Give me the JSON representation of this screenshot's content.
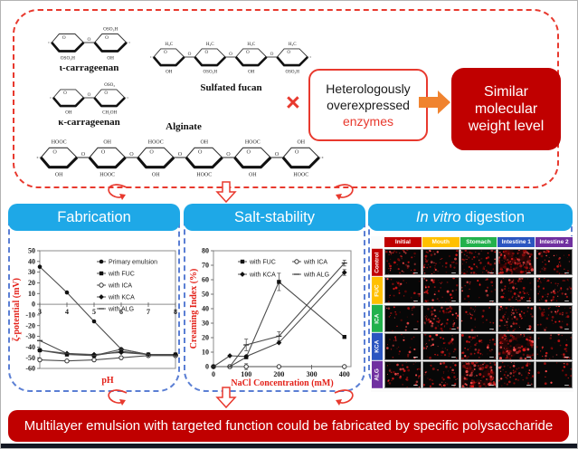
{
  "top_box": {
    "border_color": "#e8392e",
    "cross": "×",
    "molecules": [
      {
        "name": "ι-carrageenan",
        "rings": 2,
        "top_labels": [
          "",
          "OSO₃H"
        ],
        "bottom_labels": [
          "OSO₃H",
          "OH"
        ]
      },
      {
        "name": "Sulfated fucan",
        "rings": 4,
        "top_labels": [
          "H₃C"
        ],
        "bottom_labels": [
          "OH",
          "OSO₃H"
        ]
      },
      {
        "name": "κ-carrageenan",
        "rings": 2,
        "top_labels": [
          "",
          "OSO₃"
        ],
        "bottom_labels": [
          "OH",
          "CH₂OH"
        ]
      },
      {
        "name": "Alginate",
        "rings": 6,
        "top_labels": [
          "HOOC",
          "OH"
        ],
        "bottom_labels": [
          "OH",
          "HOOC"
        ]
      }
    ],
    "enzyme_box": {
      "line1": "Heterologously",
      "line2": "overexpressed",
      "line3": "enzymes",
      "accent": "#e8392e"
    },
    "result_box": {
      "text": "Similar molecular weight level",
      "bg": "#c00000"
    }
  },
  "panels": [
    {
      "title": "Fabrication",
      "header_bg": "#1ea8e7"
    },
    {
      "title": "Salt-stability",
      "header_bg": "#1ea8e7"
    },
    {
      "title_italic": "In vitro",
      "title_rest": " digestion",
      "header_bg": "#1ea8e7"
    }
  ],
  "chart_data": [
    {
      "type": "line",
      "xlabel": "pH",
      "ylabel": "ζ-potential (mV)",
      "x": [
        3,
        4,
        5,
        6,
        7,
        8
      ],
      "xlim": [
        3,
        8
      ],
      "ylim": [
        -60,
        50
      ],
      "ytick_step": 10,
      "grid": false,
      "legend_position": "top-right",
      "series": [
        {
          "name": "Primary emulsion",
          "marker": "circle",
          "values": [
            35,
            11,
            -16,
            -42,
            -47,
            -47
          ]
        },
        {
          "name": "with FUC",
          "marker": "square",
          "values": [
            -43,
            -47,
            -48,
            -44,
            -47,
            -47
          ]
        },
        {
          "name": "with ICA",
          "marker": "circle-open",
          "values": [
            -52,
            -53,
            -52,
            -50,
            -48,
            -48
          ]
        },
        {
          "name": "with KCA",
          "marker": "diamond",
          "values": [
            -43,
            -46,
            -47,
            -45,
            -47,
            -47
          ]
        },
        {
          "name": "with ALG",
          "marker": "dash",
          "values": [
            -34,
            -46,
            -48,
            -42,
            -47,
            -48
          ]
        }
      ]
    },
    {
      "type": "line",
      "xlabel": "NaCl Concentration (mM)",
      "ylabel": "Creaming Index (%)",
      "x": [
        0,
        50,
        100,
        200,
        400
      ],
      "xlim": [
        0,
        420
      ],
      "xticks": [
        0,
        100,
        200,
        300,
        400
      ],
      "ylim": [
        0,
        80
      ],
      "ytick_step": 10,
      "grid": false,
      "legend_position": "top-left",
      "series": [
        {
          "name": "with FUC",
          "marker": "square",
          "values": [
            0,
            0,
            6.5,
            58.5,
            20.5
          ],
          "err": [
            0,
            0,
            0,
            6,
            0
          ]
        },
        {
          "name": "with ICA",
          "marker": "circle-open",
          "values": [
            0,
            0,
            0,
            0,
            0
          ],
          "err": [
            0,
            0,
            2,
            0,
            0
          ]
        },
        {
          "name": "with KCA",
          "marker": "diamond",
          "values": [
            0,
            7.5,
            7,
            16.5,
            65
          ],
          "err": [
            0,
            0,
            0,
            0,
            2
          ]
        },
        {
          "name": "with ALG",
          "marker": "dash",
          "values": [
            0,
            0,
            15,
            21,
            71.5
          ],
          "err": [
            0,
            0,
            4,
            3,
            2
          ]
        }
      ]
    }
  ],
  "digestion": {
    "columns": [
      {
        "label": "Initial",
        "color": "#c00000"
      },
      {
        "label": "Mouth",
        "color": "#ffc000"
      },
      {
        "label": "Stomach",
        "color": "#22b14c"
      },
      {
        "label": "Intestine 1",
        "color": "#2b55c0"
      },
      {
        "label": "Intestine 2",
        "color": "#7030a0"
      }
    ],
    "rows": [
      {
        "label": "Control",
        "color": "#c00000"
      },
      {
        "label": "FUC",
        "color": "#ffc000"
      },
      {
        "label": "ICA",
        "color": "#22b14c"
      },
      {
        "label": "KCA",
        "color": "#2b55c0"
      },
      {
        "label": "ALG",
        "color": "#7030a0"
      }
    ],
    "densities": [
      [
        5,
        5,
        6,
        10,
        4
      ],
      [
        2,
        4,
        2,
        7,
        5
      ],
      [
        2,
        6,
        2,
        6,
        4
      ],
      [
        2,
        4,
        5,
        9,
        3
      ],
      [
        4,
        4,
        10,
        5,
        1
      ]
    ]
  },
  "conclusion": {
    "text": "Multilayer emulsion with targeted function could be fabricated by specific polysaccharide",
    "bg": "#c00000"
  }
}
